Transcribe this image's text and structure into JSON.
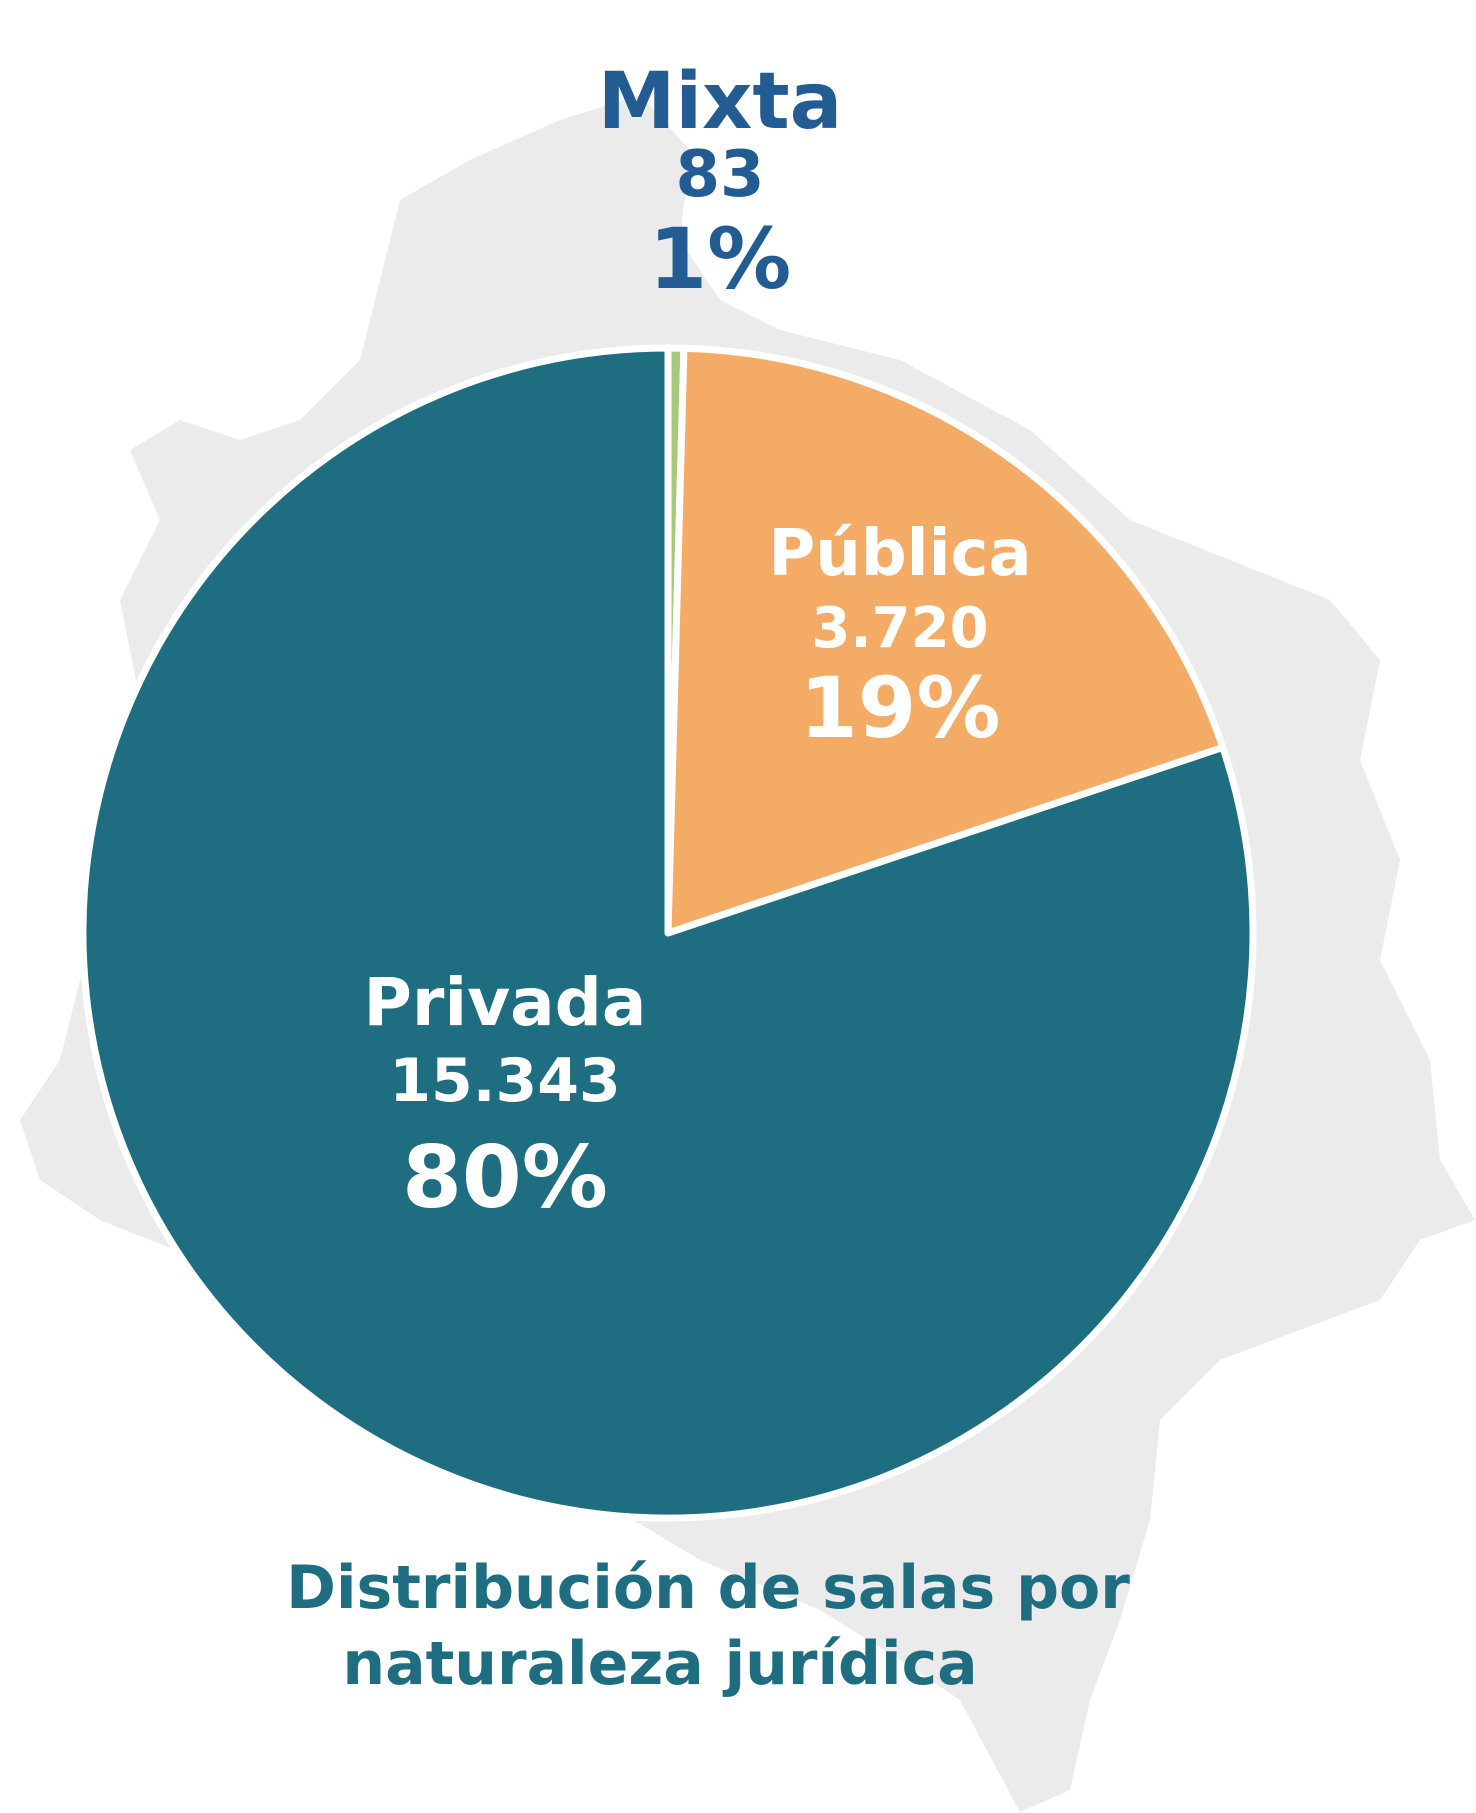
{
  "chart_data": {
    "type": "pie",
    "title": "Distribución de salas por naturaleza jurídica",
    "title_lines": [
      "Distribución de salas por",
      "naturaleza jurídica"
    ],
    "slices": [
      {
        "label": "Mixta",
        "value": 83,
        "value_text": "83",
        "percent_text": "1%",
        "color": "#a7c97a",
        "label_color": "#235c92"
      },
      {
        "label": "Pública",
        "value": 3720,
        "value_text": "3.720",
        "percent_text": "19%",
        "color": "#f4ab66",
        "label_color": "#ffffff"
      },
      {
        "label": "Privada",
        "value": 15343,
        "value_text": "15.343",
        "percent_text": "80%",
        "color": "#1f6d80",
        "label_color": "#ffffff"
      }
    ],
    "start": "top",
    "direction": "clockwise",
    "background": "map of Colombia (light gray)"
  },
  "colors": {
    "map": "#ebebeb",
    "title": "#1f6d80",
    "slice_border": "#ffffff"
  }
}
